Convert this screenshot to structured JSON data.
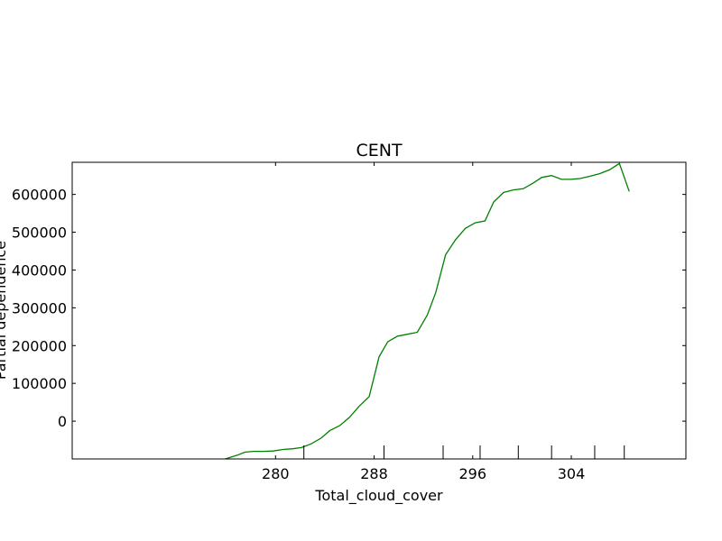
{
  "chart_data": {
    "type": "line",
    "title": "CENT",
    "xlabel": "Total_cloud_cover",
    "ylabel": "Partial dependence",
    "xlim": [
      263.5,
      313.3
    ],
    "ylim": [
      -100000,
      685000
    ],
    "xticks": [
      280,
      288,
      296,
      304
    ],
    "yticks": [
      0,
      100000,
      200000,
      300000,
      400000,
      500000,
      600000
    ],
    "rug": [
      282.3,
      288.8,
      293.6,
      296.6,
      299.7,
      302.4,
      305.9,
      308.3
    ],
    "grid": false,
    "color": "#008000",
    "series": [
      {
        "x": [
          275.4,
          276.1,
          276.9,
          277.5,
          278.2,
          279.0,
          279.8,
          280.6,
          281.4,
          282.1,
          282.9,
          283.7,
          284.4,
          285.2,
          286.0,
          286.8,
          287.6,
          288.4,
          289.1,
          289.9,
          290.7,
          291.5,
          292.3,
          293.0,
          293.8,
          294.6,
          295.4,
          296.2,
          297.0,
          297.7,
          298.5,
          299.3,
          300.1,
          300.9,
          301.6,
          302.4,
          303.2,
          304.0,
          304.7,
          305.5,
          306.3,
          307.1,
          307.9,
          308.7
        ],
        "y": [
          -105000,
          -98000,
          -90000,
          -82000,
          -80000,
          -80000,
          -79000,
          -75000,
          -73000,
          -70000,
          -60000,
          -45000,
          -25000,
          -12000,
          10000,
          40000,
          65000,
          170000,
          210000,
          225000,
          230000,
          235000,
          280000,
          340000,
          440000,
          480000,
          510000,
          525000,
          530000,
          580000,
          605000,
          612000,
          615000,
          630000,
          645000,
          650000,
          640000,
          640000,
          642000,
          648000,
          655000,
          665000,
          682000,
          608000
        ]
      }
    ]
  }
}
